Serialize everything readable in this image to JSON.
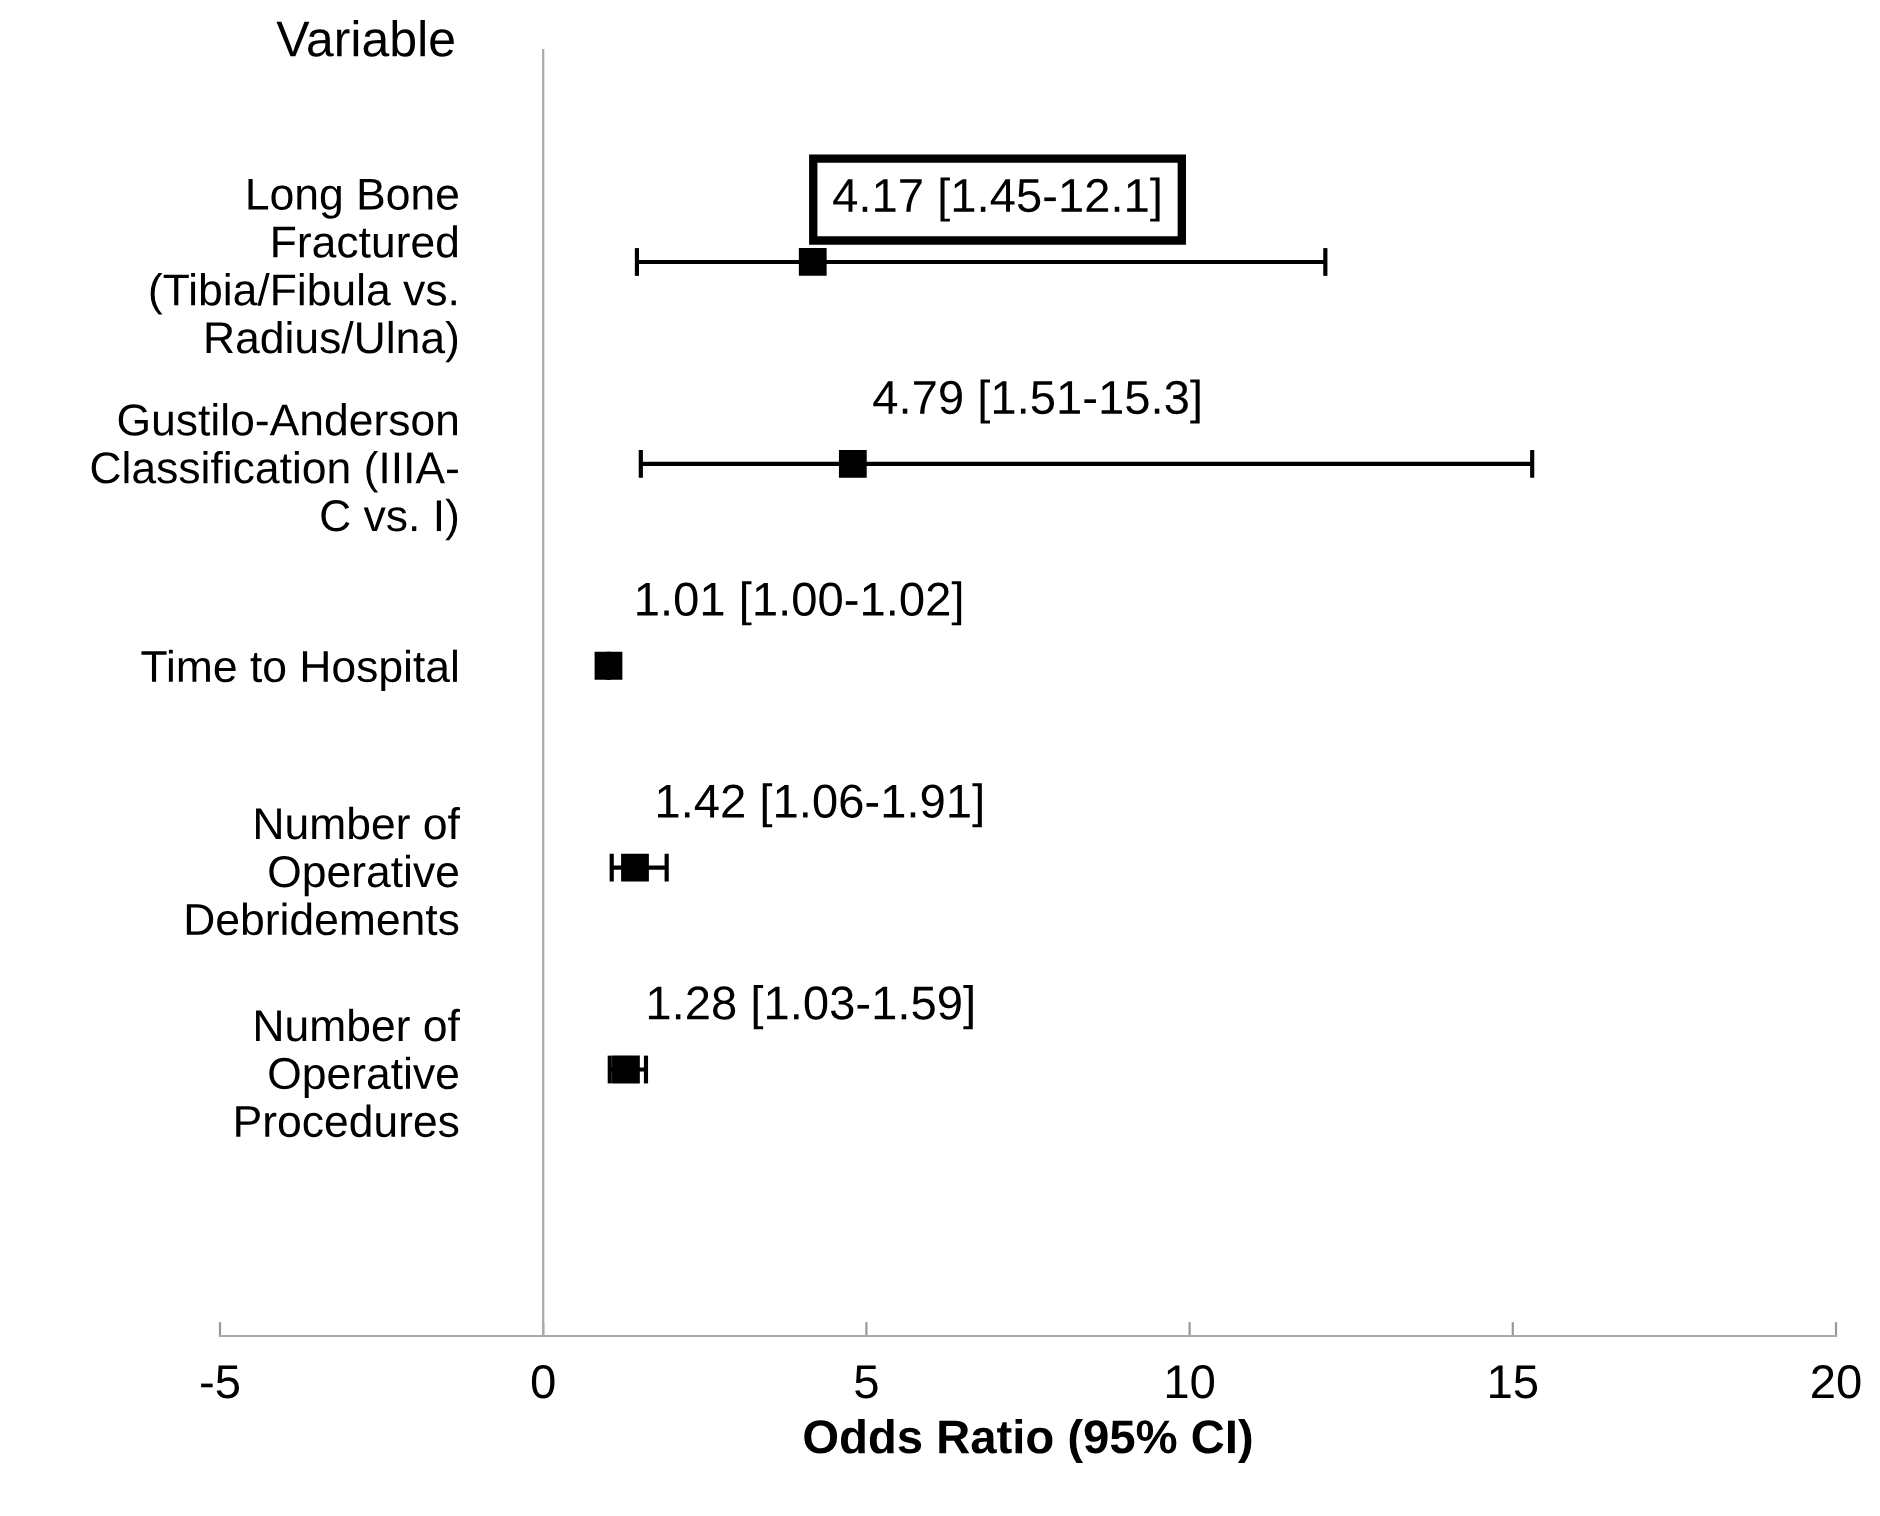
{
  "chart_data": {
    "type": "scatter",
    "orientation": "horizontal",
    "ylabel": "Variable",
    "xlabel": "Odds Ratio (95% CI)",
    "categories": [
      "Long Bone\nFractured\n(Tibia/Fibula vs.\nRadius/Ulna)",
      "Gustilo-Anderson\nClassification (IIIA-\nC vs. I)",
      "Time to Hospital",
      "Number of\nOperative\nDebridements",
      "Number of\nOperative\nProcedures"
    ],
    "values": [
      4.17,
      4.79,
      1.01,
      1.42,
      1.28
    ],
    "errors": [
      [
        1.45,
        12.1
      ],
      [
        1.51,
        15.3
      ],
      [
        1.0,
        1.02
      ],
      [
        1.06,
        1.91
      ],
      [
        1.03,
        1.59
      ]
    ],
    "value_labels": [
      "4.17 [1.45-12.1]",
      "4.79 [1.51-15.3]",
      "1.01 [1.00-1.02]",
      "1.42 [1.06-1.91]",
      "1.28 [1.03-1.59]"
    ],
    "color": "#000000",
    "marker": "square",
    "xlim": [
      -5,
      20
    ],
    "xticks": [
      -5,
      0,
      5,
      10,
      15,
      20
    ]
  }
}
